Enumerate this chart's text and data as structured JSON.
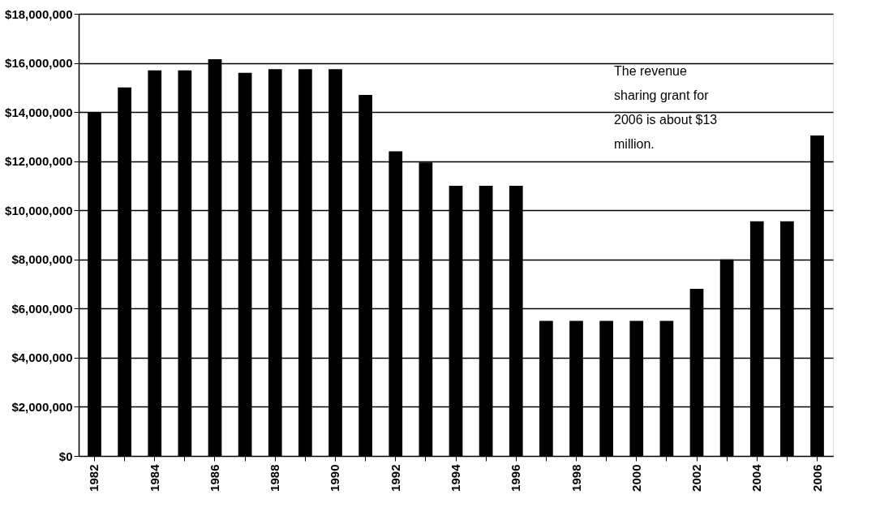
{
  "chart_data": {
    "type": "bar",
    "categories": [
      "1982",
      null,
      "1984",
      null,
      "1986",
      null,
      "1988",
      null,
      "1990",
      null,
      "1992",
      null,
      "1994",
      null,
      "1996",
      null,
      "1998",
      null,
      "2000",
      null,
      "2002",
      null,
      "2004",
      null,
      "2006"
    ],
    "series": [
      {
        "color": "#000000",
        "values": [
          14000000,
          15000000,
          15700000,
          15700000,
          16150000,
          15600000,
          15750000,
          15750000,
          15750000,
          14700000,
          12400000,
          11950000,
          11000000,
          11000000,
          11000000,
          5500000,
          5500000,
          5500000,
          5500000,
          5500000,
          6800000,
          8000000,
          9550000,
          9550000,
          13050000
        ]
      }
    ],
    "ylim": [
      0,
      18000000
    ],
    "yticks": [
      {
        "value": 0,
        "label": "$0"
      },
      {
        "value": 2000000,
        "label": "$2,000,000"
      },
      {
        "value": 4000000,
        "label": "$4,000,000"
      },
      {
        "value": 6000000,
        "label": "$6,000,000"
      },
      {
        "value": 8000000,
        "label": "$8,000,000"
      },
      {
        "value": 10000000,
        "label": "$10,000,000"
      },
      {
        "value": 12000000,
        "label": "$12,000,000"
      },
      {
        "value": 14000000,
        "label": "$14,000,000"
      },
      {
        "value": 16000000,
        "label": "$16,000,000"
      },
      {
        "value": 18000000,
        "label": "$18,000,000"
      }
    ],
    "grid": "y",
    "legend": false,
    "annotations": [
      "The revenue sharing grant for 2006 is about $13 million."
    ]
  }
}
